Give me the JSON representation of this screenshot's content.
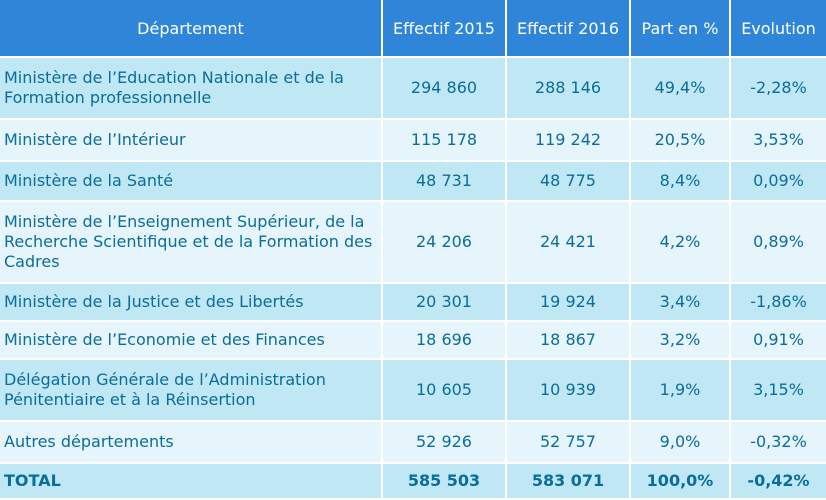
{
  "headers": [
    "Département",
    "Effectif 2015",
    "Effectif 2016",
    "Part en %",
    "Evolution"
  ],
  "rows": [
    {
      "dept": "Ministère de l’Education Nationale et de la Formation professionnelle",
      "e2015": "294 860",
      "e2016": "288 146",
      "part": "49,4%",
      "evol": "-2,28%"
    },
    {
      "dept": "Ministère de l’Intérieur",
      "e2015": "115 178",
      "e2016": "119 242",
      "part": "20,5%",
      "evol": "3,53%"
    },
    {
      "dept": "Ministère de la Santé",
      "e2015": "48 731",
      "e2016": "48 775",
      "part": "8,4%",
      "evol": "0,09%"
    },
    {
      "dept": "Ministère de l’Enseignement Supérieur, de la Recherche Scientifique et de la Formation des Cadres",
      "e2015": "24 206",
      "e2016": "24 421",
      "part": "4,2%",
      "evol": "0,89%"
    },
    {
      "dept": "Ministère de la Justice et des Libertés",
      "e2015": "20 301",
      "e2016": "19 924",
      "part": "3,4%",
      "evol": "-1,86%"
    },
    {
      "dept": "Ministère de l’Economie et des Finances",
      "e2015": "18 696",
      "e2016": "18 867",
      "part": "3,2%",
      "evol": "0,91%"
    },
    {
      "dept": "Délégation Générale de l’Administration Pénitentiaire et à la Réinsertion",
      "e2015": "10 605",
      "e2016": "10 939",
      "part": "1,9%",
      "evol": "3,15%"
    },
    {
      "dept": "Autres départements",
      "e2015": "52 926",
      "e2016": "52 757",
      "part": "9,0%",
      "evol": "-0,32%"
    }
  ],
  "total": {
    "dept": "TOTAL",
    "e2015": "585 503",
    "e2016": "583 071",
    "part": "100,0%",
    "evol": "-0,42%"
  }
}
